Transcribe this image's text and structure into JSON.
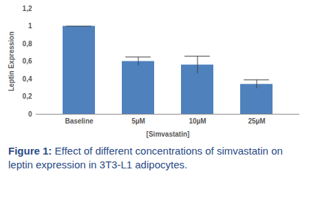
{
  "chart_data": {
    "type": "bar",
    "categories": [
      "Baseline",
      "5µM",
      "10µM",
      "25µM"
    ],
    "values": [
      1.0,
      0.6,
      0.56,
      0.34
    ],
    "errors": [
      0,
      0.05,
      0.1,
      0.05
    ],
    "color": "#4f81bd",
    "x_label": "[Simvastatin]",
    "y_label": "Leptin Expression",
    "ylim": [
      0,
      1.2
    ],
    "yticks": [
      0,
      {
        "value": 0.2,
        "label": "0,2"
      },
      {
        "value": 0.4,
        "label": "0,4"
      },
      {
        "value": 0.6,
        "label": "0,6"
      },
      {
        "value": 0.8,
        "label": "0,8"
      },
      1,
      {
        "value": 1.2,
        "label": "1,2"
      }
    ],
    "grid": false,
    "caption_label": "Figure 1:",
    "caption": "Effect of different concentrations of simvastatin on leptin expression in 3T3-L1 adipocytes."
  }
}
